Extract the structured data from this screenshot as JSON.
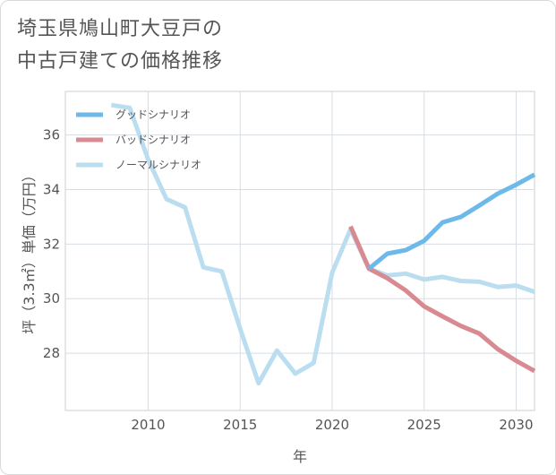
{
  "chart_data": {
    "type": "line",
    "title_lines": [
      "埼玉県鳩山町大豆戸の",
      "中古戸建ての価格推移"
    ],
    "xlabel": "年",
    "ylabel": "坪（3.3㎡）単価（万円）",
    "xlim": [
      2005.5,
      2031
    ],
    "ylim": [
      25.9,
      37.6
    ],
    "xticks": [
      2010,
      2015,
      2020,
      2025,
      2030
    ],
    "yticks": [
      28,
      30,
      32,
      34,
      36
    ],
    "legend_position": "top-left",
    "series": [
      {
        "name": "グッドシナリオ",
        "color": "#6cb9ea",
        "x": [
          2022,
          2023,
          2024,
          2025,
          2026,
          2027,
          2028,
          2029,
          2030,
          2031
        ],
        "values": [
          31.1,
          31.65,
          31.78,
          32.12,
          32.8,
          33.0,
          33.42,
          33.85,
          34.18,
          34.55
        ]
      },
      {
        "name": "バッドシナリオ",
        "color": "#d98990",
        "x": [
          2021,
          2022,
          2023,
          2024,
          2025,
          2026,
          2027,
          2028,
          2029,
          2030,
          2031
        ],
        "values": [
          32.65,
          31.1,
          30.75,
          30.3,
          29.72,
          29.35,
          29.0,
          28.72,
          28.15,
          27.72,
          27.35
        ]
      },
      {
        "name": "ノーマルシナリオ",
        "color": "#badef0",
        "x": [
          2008,
          2009,
          2010,
          2011,
          2012,
          2013,
          2014,
          2015,
          2016,
          2017,
          2018,
          2019,
          2020,
          2021,
          2022,
          2023,
          2024,
          2025,
          2026,
          2027,
          2028,
          2029,
          2030,
          2031
        ],
        "values": [
          37.1,
          37.0,
          35.1,
          33.65,
          33.35,
          31.15,
          31.0,
          28.9,
          26.9,
          28.1,
          27.25,
          27.65,
          30.95,
          32.55,
          31.1,
          30.85,
          30.92,
          30.7,
          30.8,
          30.65,
          30.62,
          30.43,
          30.48,
          30.25
        ]
      }
    ]
  }
}
